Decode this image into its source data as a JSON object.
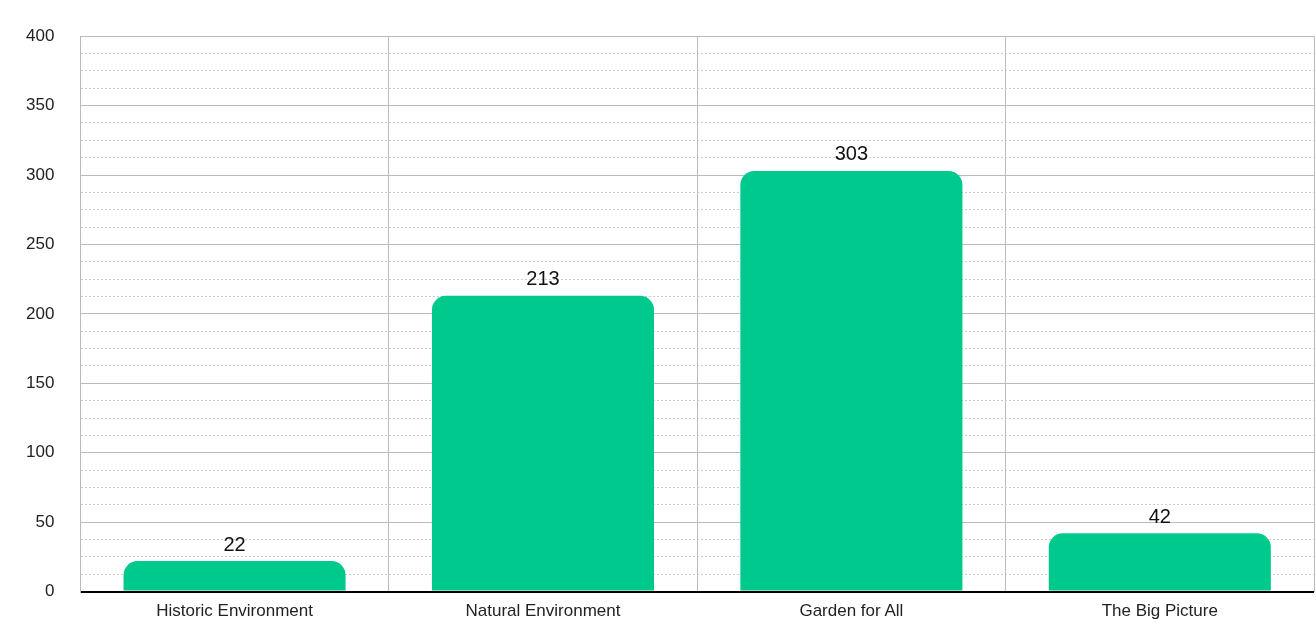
{
  "chart_data": {
    "type": "bar",
    "categories": [
      "Historic Environment",
      "Natural Environment",
      "Garden for All",
      "The Big Picture"
    ],
    "values": [
      22,
      213,
      303,
      42
    ],
    "color": "#00c98d",
    "data_labels": true,
    "grid": true,
    "ylim": [
      0,
      400
    ],
    "yticks": [
      0,
      {
        "value": 12.5,
        "label": null
      },
      {
        "value": 25,
        "label": null
      },
      {
        "value": 37.5,
        "label": null
      },
      50,
      {
        "value": 62.5,
        "label": null
      },
      {
        "value": 75,
        "label": null
      },
      {
        "value": 87.5,
        "label": null
      },
      100,
      {
        "value": 112.5,
        "label": null
      },
      {
        "value": 125,
        "label": null
      },
      {
        "value": 137.5,
        "label": null
      },
      150,
      {
        "value": 162.5,
        "label": null
      },
      {
        "value": 175,
        "label": null
      },
      {
        "value": 187.5,
        "label": null
      },
      200,
      {
        "value": 212.5,
        "label": null
      },
      {
        "value": 225,
        "label": null
      },
      {
        "value": 237.5,
        "label": null
      },
      250,
      {
        "value": 262.5,
        "label": null
      },
      {
        "value": 275,
        "label": null
      },
      {
        "value": 287.5,
        "label": null
      },
      300,
      {
        "value": 312.5,
        "label": null
      },
      {
        "value": 325,
        "label": null
      },
      {
        "value": 337.5,
        "label": null
      },
      350,
      {
        "value": 362.5,
        "label": null
      },
      {
        "value": 375,
        "label": null
      },
      {
        "value": 387.5,
        "label": null
      },
      400
    ]
  }
}
